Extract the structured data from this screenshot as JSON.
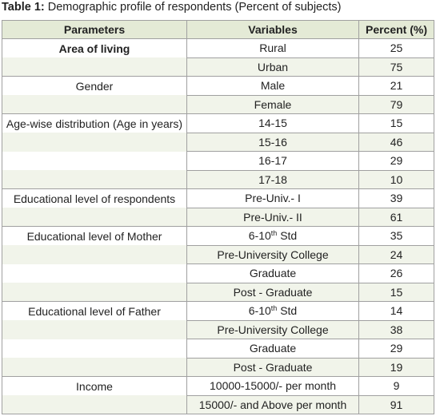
{
  "table": {
    "caption": {
      "label": "Table 1:",
      "text": " Demographic profile of respondents (Percent of subjects)"
    },
    "header": [
      "Parameters",
      "Variables",
      "Percent (%)"
    ],
    "rows": [
      {
        "parameter": "Area of living",
        "variable": "Rural",
        "percent": 25
      },
      {
        "variable": "Urban",
        "percent": 75
      },
      {
        "parameter": "Gender",
        "variable": "Male",
        "percent": 21
      },
      {
        "variable": "Female",
        "percent": 79
      },
      {
        "parameter": "Age-wise distribution (Age in years)",
        "variable": "14-15",
        "percent": 15
      },
      {
        "variable": "15-16",
        "percent": 46
      },
      {
        "variable": "16-17",
        "percent": 29
      },
      {
        "variable": "17-18",
        "percent": 10
      },
      {
        "parameter": "Educational level of respondents",
        "variable": "Pre-Univ.- I",
        "percent": 39
      },
      {
        "variable": "Pre-Univ.- II",
        "percent": 61
      },
      {
        "parameter": "Educational level of Mother",
        "variable": {
          "base": "6-10",
          "sup": "th",
          "rest": " Std"
        },
        "percent": 35
      },
      {
        "variable": "Pre-University College",
        "percent": 24
      },
      {
        "variable": "Graduate",
        "percent": 26
      },
      {
        "variable": "Post - Graduate",
        "percent": 15
      },
      {
        "parameter": "Educational level of Father",
        "variable": {
          "base": "6-10",
          "sup": "th",
          "rest": " Std"
        },
        "percent": 14
      },
      {
        "variable": "Pre-University College",
        "percent": 38
      },
      {
        "variable": "Graduate",
        "percent": 29
      },
      {
        "variable": "Post - Graduate",
        "percent": 19
      },
      {
        "parameter": "Income",
        "variable": "10000-15000/- per month",
        "percent": 9
      },
      {
        "variable": "15000/- and Above per month",
        "percent": 91
      }
    ]
  }
}
